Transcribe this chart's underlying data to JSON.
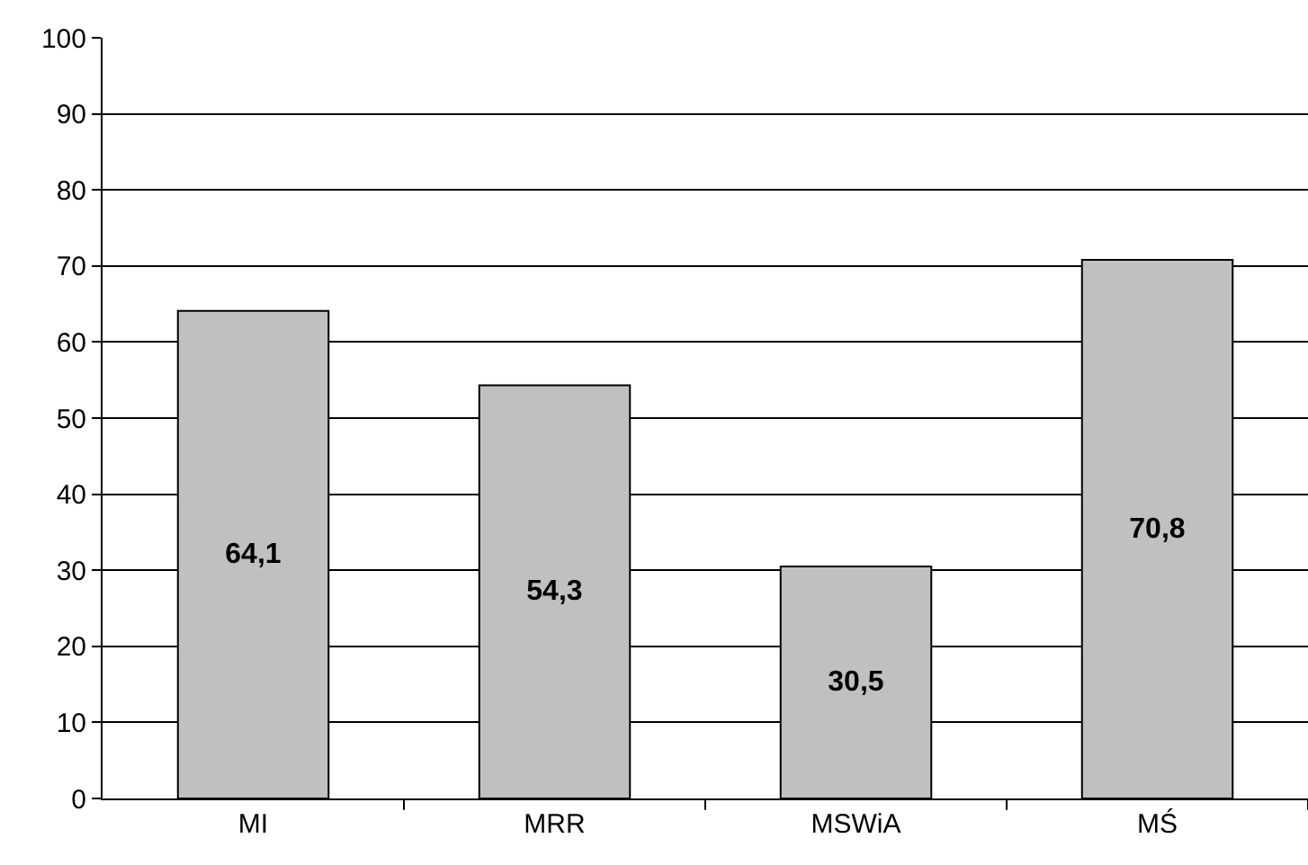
{
  "chart_data": {
    "type": "bar",
    "categories": [
      "MI",
      "MRR",
      "MSWiA",
      "MŚ"
    ],
    "values": [
      64.1,
      54.3,
      30.5,
      70.8
    ],
    "value_labels": [
      "64,1",
      "54,3",
      "30,5",
      "70,8"
    ],
    "color": "#c0c0c0",
    "ylim": [
      0,
      100
    ],
    "yticks": [
      0,
      10,
      20,
      30,
      40,
      50,
      60,
      70,
      80,
      90,
      100
    ],
    "grid": "y",
    "legend": false
  }
}
